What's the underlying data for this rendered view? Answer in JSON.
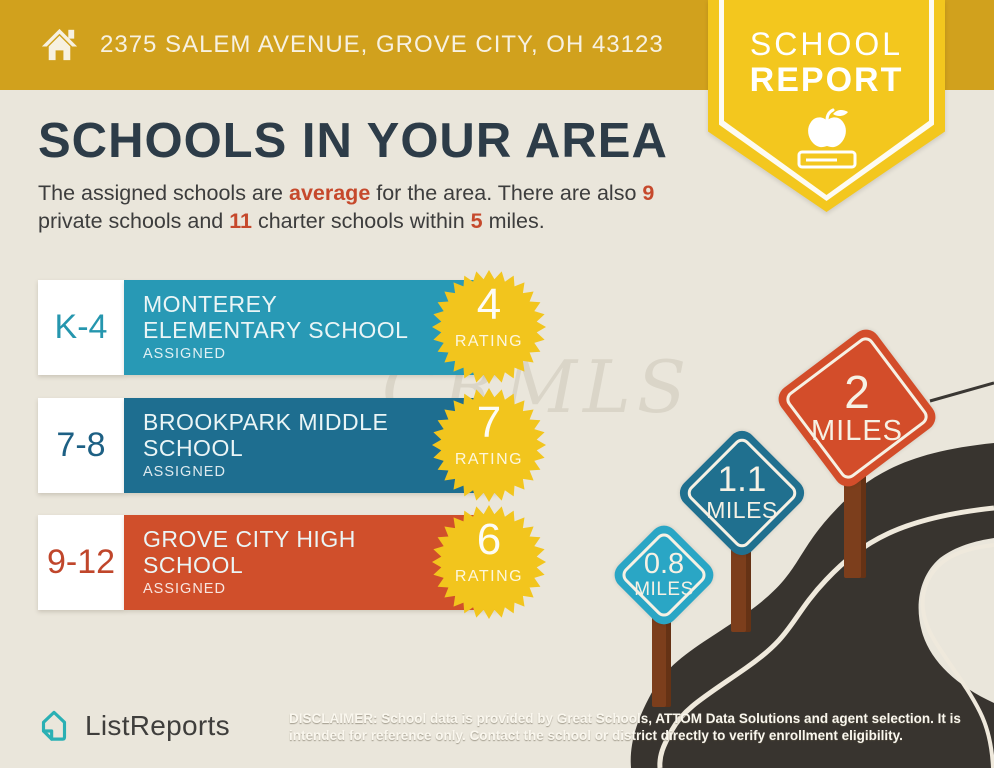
{
  "header": {
    "address": "2375 SALEM AVENUE, GROVE CITY, OH 43123"
  },
  "ribbon": {
    "line1": "SCHOOL",
    "line2": "REPORT"
  },
  "title": "SCHOOLS IN YOUR AREA",
  "intro": {
    "t1": "The assigned schools are ",
    "h1": "average",
    "t2": " for the area. There are also ",
    "h2": "9",
    "t3": " private schools and ",
    "h3": "11",
    "t4": " charter schools within ",
    "h4": "5",
    "t5": " miles."
  },
  "schools": [
    {
      "grades": "K-4",
      "name": "MONTEREY\nELEMENTARY SCHOOL",
      "status": "ASSIGNED",
      "rating": "4",
      "rating_label": "RATING",
      "color": "#2899b5",
      "grade_color": "#2596ae"
    },
    {
      "grades": "7-8",
      "name": "BROOKPARK MIDDLE\nSCHOOL",
      "status": "ASSIGNED",
      "rating": "7",
      "rating_label": "RATING",
      "color": "#1e6e90",
      "grade_color": "#1d6084"
    },
    {
      "grades": "9-12",
      "name": "GROVE CITY HIGH\nSCHOOL",
      "status": "ASSIGNED",
      "rating": "6",
      "rating_label": "RATING",
      "color": "#d04f2b",
      "grade_color": "#c0462b"
    }
  ],
  "signs": [
    {
      "value": "0.8",
      "unit": "MILES",
      "color": "#2aa6c5"
    },
    {
      "value": "1.1",
      "unit": "MILES",
      "color": "#20708f"
    },
    {
      "value": "2",
      "unit": "MILES",
      "color": "#d34d2a"
    }
  ],
  "watermark": "CRMLS",
  "footer": {
    "brand": "ListReports",
    "disclaimer_label": "DISCLAIMER:",
    "disclaimer_text": " School data is provided by Great Schools, ATTOM Data Solutions and agent selection. It is intended for reference only. Contact the school or district directly to verify enrollment eligibility."
  },
  "colors": {
    "header_gold": "#d1a11d",
    "ribbon_yellow": "#f3c71e",
    "background": "#eae6db",
    "title_navy": "#2d3c48",
    "accent_red": "#c6492c",
    "star_yellow": "#f2c51d",
    "road_dark": "#38342f",
    "road_line": "#efe9dc",
    "post_brown": "#7c3e1c",
    "logo_teal": "#2ab0b4"
  }
}
